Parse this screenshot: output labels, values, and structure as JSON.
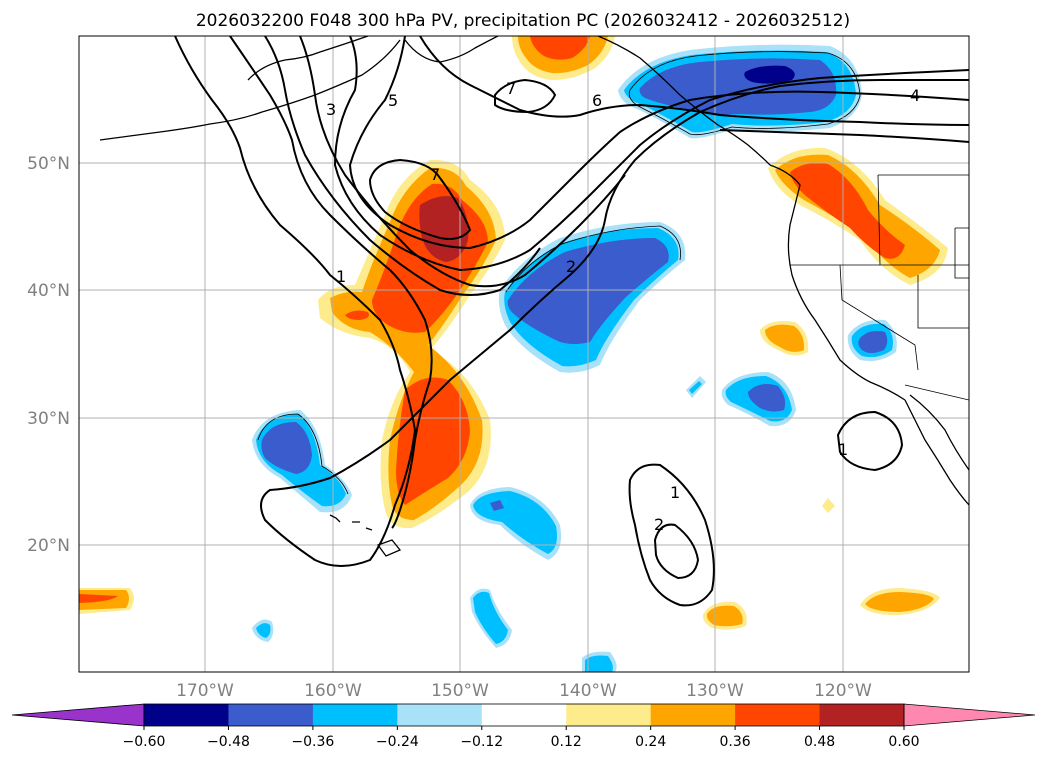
{
  "title": "2026032200 F048 300 hPa PV, precipitation PC (2026032412 - 2026032512)",
  "axes": {
    "lon_labels": [
      "170°W",
      "160°W",
      "150°W",
      "140°W",
      "130°W",
      "120°W"
    ],
    "lat_labels": [
      "50°N",
      "40°N",
      "30°N",
      "20°N"
    ],
    "lon_range": [
      -180,
      -110
    ],
    "lat_range": [
      10,
      60
    ],
    "grid": true
  },
  "colorbar": {
    "levels": [
      "−0.60",
      "−0.48",
      "−0.36",
      "−0.24",
      "−0.12",
      "0.12",
      "0.24",
      "0.36",
      "0.48",
      "0.60"
    ],
    "colors": [
      "#9933cc",
      "#00008b",
      "#3a5ccc",
      "#00bfff",
      "#a9e1f9",
      "#ffffff",
      "#fdeb8c",
      "#ffa500",
      "#ff4500",
      "#b22222",
      "#ff88b0"
    ],
    "extend": "both"
  },
  "contour_labels": {
    "pv_1": "1",
    "pv_2": "2",
    "pv_3": "3",
    "pv_4": "4",
    "pv_5": "5",
    "pv_6": "6",
    "pv_7": "7"
  }
}
